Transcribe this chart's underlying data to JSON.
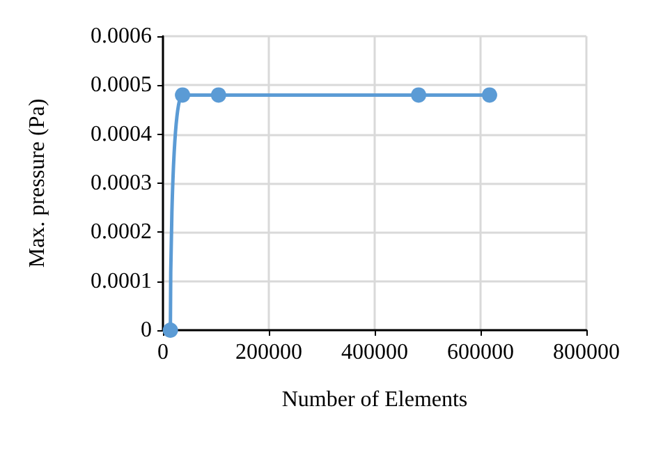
{
  "chart_data": {
    "type": "line",
    "xlabel": "Number of Elements",
    "ylabel": "Max. pressure (Pa)",
    "x": [
      14000,
      37000,
      105000,
      483000,
      617000
    ],
    "series": [
      {
        "color": "#5b9bd5",
        "values": [
          0,
          0.00048,
          0.00048,
          0.00048,
          0.00048
        ]
      }
    ],
    "xlim": [
      0,
      800000
    ],
    "xticks": [
      0,
      200000,
      400000,
      600000,
      800000
    ],
    "ylim": [
      0,
      0.0006
    ],
    "yticks": [
      0,
      0.0001,
      0.0002,
      0.0003,
      0.0004,
      0.0005,
      0.0006
    ],
    "grid": true,
    "marker": "circle",
    "line_style": "solid"
  }
}
